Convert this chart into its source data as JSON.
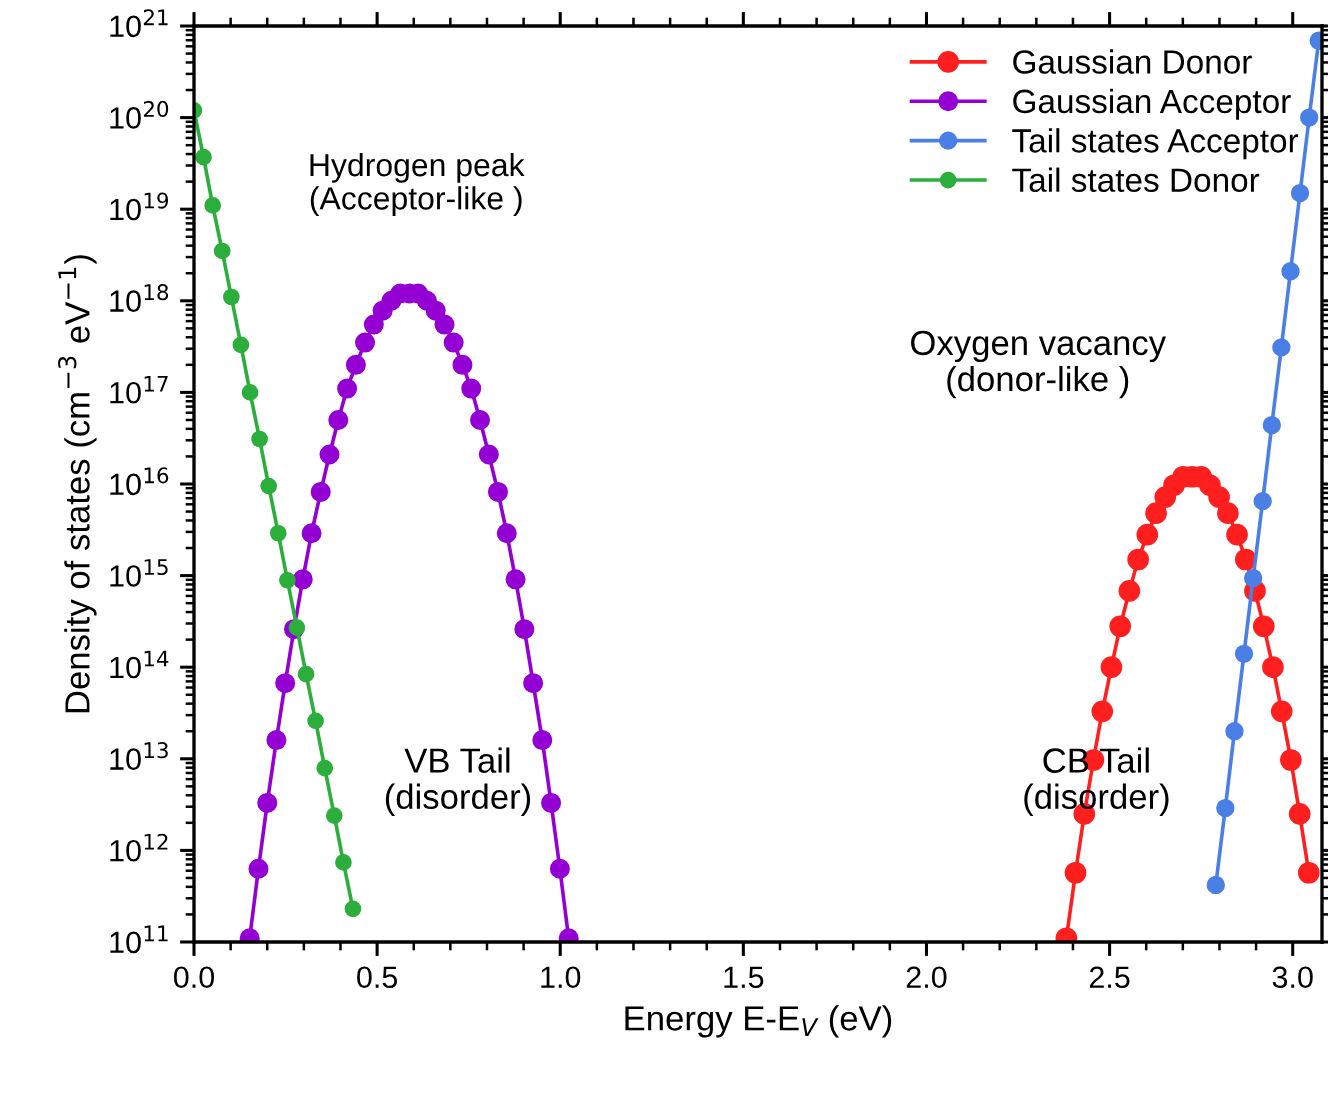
{
  "chart_data": {
    "type": "line",
    "xlabel": "Energy E-E$_{V}$ (eV)",
    "ylabel": "Density of states (cm$^{−3}$ eV$^{−1}$)",
    "log": "y",
    "marker": "circle",
    "line_style": "solid",
    "legend": "top right",
    "grid": false,
    "xlim": [
      0,
      3.08
    ],
    "xticks": [
      {
        "value": 0,
        "label": "0.0"
      },
      0.5,
      {
        "value": 1,
        "label": "1.0"
      },
      1.5,
      {
        "value": 2,
        "label": "2.0"
      },
      2.5,
      {
        "value": 3,
        "label": "3.0"
      }
    ],
    "ylim": [
      100000000000.0,
      1e+21
    ],
    "yticks": [
      {
        "value": 100000000000.0,
        "label": "10$^{11}$"
      },
      {
        "value": 1000000000000.0,
        "label": "10$^{12}$"
      },
      {
        "value": 10000000000000.0,
        "label": "10$^{13}$"
      },
      {
        "value": 100000000000000.0,
        "label": "10$^{14}$"
      },
      {
        "value": 1000000000000000.0,
        "label": "10$^{15}$"
      },
      {
        "value": 1e+16,
        "label": "10$^{16}$"
      },
      {
        "value": 1e+17,
        "label": "10$^{17}$"
      },
      {
        "value": 1e+18,
        "label": "10$^{18}$"
      },
      {
        "value": 1e+19,
        "label": "10$^{19}$"
      },
      {
        "value": 1e+20,
        "label": "10$^{20}$"
      },
      {
        "value": 1e+21,
        "label": "10$^{21}$"
      }
    ],
    "annotations": [
      "Hydrogen peak\n(Acceptor-like )",
      "Oxygen vacancy\n(donor-like )",
      "VB Tail\n(disorder)",
      "CB Tail\n(disorder)"
    ],
    "series": [
      {
        "name": "Gaussian Donor",
        "color": "#ff1f1f",
        "x": [
          2.382,
          2.407,
          2.431,
          2.456,
          2.48,
          2.505,
          2.529,
          2.554,
          2.578,
          2.603,
          2.627,
          2.652,
          2.676,
          2.701,
          2.725,
          2.75,
          2.774,
          2.799,
          2.823,
          2.848,
          2.872,
          2.897,
          2.921,
          2.946,
          2.97,
          2.995,
          3.019,
          3.044
        ],
        "values": [
          110000000000.0,
          570000000000.0,
          2500000000000.0,
          9700000000000.0,
          33000000000000.0,
          100000000000000.0,
          280000000000000.0,
          680000000000000.0,
          1500000000000000.0,
          2800000000000000.0,
          4800000000000000.0,
          7200000000000000.0,
          9700000000000000.0,
          1.2e+16,
          1.2e+16,
          1.2e+16,
          9700000000000000.0,
          7200000000000000.0,
          4800000000000000.0,
          2800000000000000.0,
          1500000000000000.0,
          680000000000000.0,
          280000000000000.0,
          100000000000000.0,
          33000000000000.0,
          9700000000000.0,
          2500000000000.0,
          570000000000.0
        ]
      },
      {
        "name": "Gaussian Acceptor",
        "color": "#9400d3",
        "x": [
          0.152,
          0.176,
          0.2,
          0.225,
          0.249,
          0.273,
          0.297,
          0.321,
          0.346,
          0.37,
          0.394,
          0.418,
          0.442,
          0.467,
          0.491,
          0.515,
          0.539,
          0.563,
          0.588,
          0.612,
          0.636,
          0.66,
          0.684,
          0.709,
          0.733,
          0.757,
          0.781,
          0.805,
          0.83,
          0.854,
          0.878,
          0.902,
          0.926,
          0.951,
          0.975,
          0.999,
          1.023
        ],
        "values": [
          110000000000.0,
          630000000000.0,
          3300000000000.0,
          16000000000000.0,
          67000000000000.0,
          260000000000000.0,
          910000000000000.0,
          2900000000000000.0,
          8200000000000000.0,
          2.1e+16,
          5e+16,
          1.1e+17,
          2e+17,
          3.5e+17,
          5.5e+17,
          7.8e+17,
          1e+18,
          1.2e+18,
          1.2e+18,
          1.2e+18,
          1e+18,
          7.8e+17,
          5.5e+17,
          3.5e+17,
          2e+17,
          1.1e+17,
          5e+16,
          2.1e+16,
          8200000000000000.0,
          2900000000000000.0,
          910000000000000.0,
          260000000000000.0,
          67000000000000.0,
          16000000000000.0,
          3300000000000.0,
          630000000000.0,
          110000000000.0
        ]
      },
      {
        "name": "Tail states Acceptor",
        "color": "#4a7fe6",
        "x": [
          2.79,
          2.816,
          2.841,
          2.867,
          2.892,
          2.918,
          2.943,
          2.969,
          2.994,
          3.02,
          3.045,
          3.071
        ],
        "values": [
          420000000000.0,
          2900000000000.0,
          20000000000000.0,
          140000000000000.0,
          940000000000000.0,
          6500000000000000.0,
          4.4e+16,
          3.1e+17,
          2.1e+18,
          1.5e+19,
          1e+20,
          6.9e+20
        ]
      },
      {
        "name": "Tail states Donor",
        "color": "#2cae3c",
        "x": [
          0,
          0.026,
          0.051,
          0.077,
          0.102,
          0.128,
          0.153,
          0.179,
          0.204,
          0.23,
          0.255,
          0.281,
          0.306,
          0.332,
          0.357,
          0.383,
          0.408,
          0.434
        ],
        "values": [
          1.2e+20,
          3.7e+19,
          1.1e+19,
          3.5e+18,
          1.1e+18,
          3.3e+17,
          1e+17,
          3.1e+16,
          9500000000000000.0,
          2900000000000000.0,
          890000000000000.0,
          270000000000000.0,
          84000000000000.0,
          26000000000000.0,
          7900000000000.0,
          2400000000000.0,
          740000000000.0,
          230000000000.0
        ]
      }
    ]
  }
}
